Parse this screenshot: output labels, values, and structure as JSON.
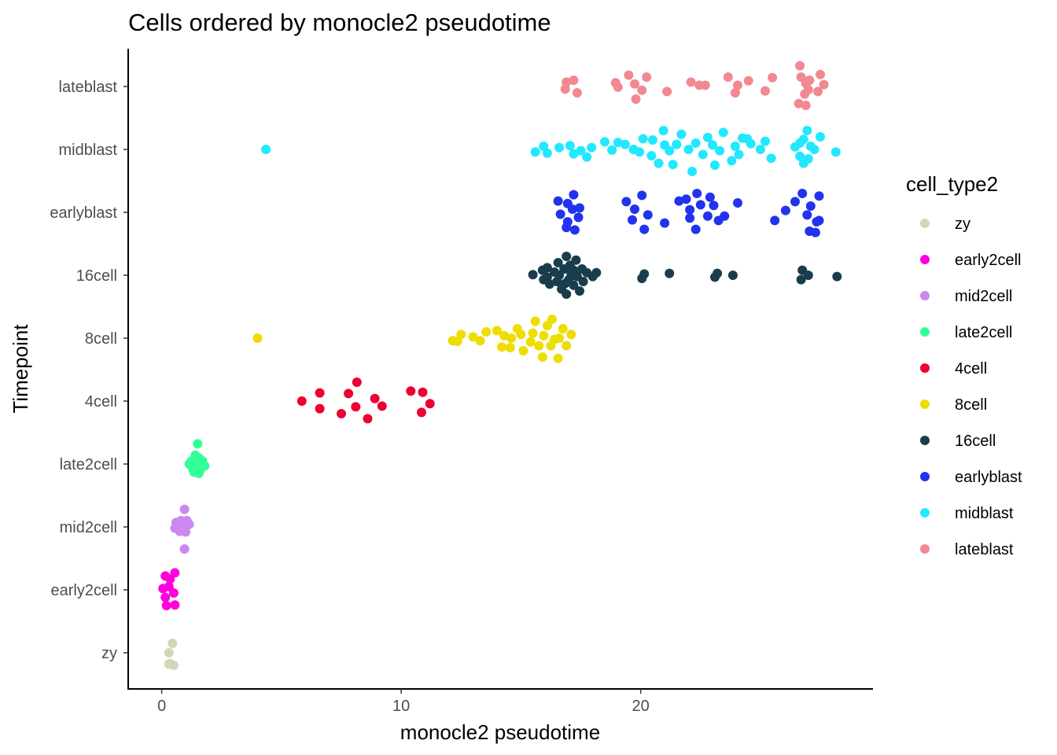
{
  "chart_data": {
    "type": "scatter",
    "title": "Cells ordered by monocle2 pseudotime",
    "xlabel": "monocle2 pseudotime",
    "ylabel": "Timepoint",
    "xlim": [
      -1.4,
      29.7
    ],
    "x_ticks": [
      0,
      10,
      20
    ],
    "categories": [
      "zy",
      "early2cell",
      "mid2cell",
      "late2cell",
      "4cell",
      "8cell",
      "16cell",
      "earlyblast",
      "midblast",
      "lateblast"
    ],
    "grid": false,
    "legend": {
      "title": "cell_type2",
      "position": "right"
    },
    "series": [
      {
        "name": "zy",
        "color": "#cfd8b8",
        "points": [
          [
            0.45,
            0.15
          ],
          [
            0.3,
            0.0
          ],
          [
            0.3,
            -0.18
          ],
          [
            0.5,
            -0.2
          ],
          [
            0.35,
            -0.17
          ]
        ]
      },
      {
        "name": "early2cell",
        "color": "#ff00dd",
        "points": [
          [
            0.55,
            0.27
          ],
          [
            0.15,
            0.22
          ],
          [
            0.35,
            0.17
          ],
          [
            0.05,
            0.02
          ],
          [
            0.3,
            0.05
          ],
          [
            0.5,
            -0.05
          ],
          [
            0.15,
            -0.12
          ],
          [
            0.2,
            -0.25
          ],
          [
            0.55,
            -0.24
          ]
        ]
      },
      {
        "name": "mid2cell",
        "color": "#cc88ee",
        "points": [
          [
            0.95,
            0.28
          ],
          [
            0.6,
            0.07
          ],
          [
            0.8,
            0.1
          ],
          [
            1.05,
            0.1
          ],
          [
            0.9,
            0.02
          ],
          [
            1.15,
            0.04
          ],
          [
            0.55,
            -0.02
          ],
          [
            0.75,
            -0.07
          ],
          [
            1.0,
            -0.08
          ],
          [
            0.95,
            -0.35
          ]
        ]
      },
      {
        "name": "late2cell",
        "color": "#33ff99",
        "points": [
          [
            1.5,
            0.32
          ],
          [
            1.4,
            0.14
          ],
          [
            1.55,
            0.1
          ],
          [
            1.25,
            0.05
          ],
          [
            1.7,
            0.05
          ],
          [
            1.15,
            0.0
          ],
          [
            1.45,
            -0.02
          ],
          [
            1.8,
            -0.03
          ],
          [
            1.3,
            -0.08
          ],
          [
            1.6,
            -0.1
          ],
          [
            1.35,
            -0.13
          ],
          [
            1.55,
            -0.15
          ]
        ]
      },
      {
        "name": "4cell",
        "color": "#ee0033",
        "points": [
          [
            5.85,
            0.0
          ],
          [
            6.6,
            0.13
          ],
          [
            6.6,
            -0.12
          ],
          [
            7.5,
            -0.2
          ],
          [
            7.8,
            0.12
          ],
          [
            8.15,
            0.3
          ],
          [
            8.1,
            -0.09
          ],
          [
            8.6,
            -0.28
          ],
          [
            8.9,
            0.04
          ],
          [
            9.2,
            -0.08
          ],
          [
            10.4,
            0.16
          ],
          [
            10.9,
            0.14
          ],
          [
            10.85,
            -0.18
          ],
          [
            11.2,
            -0.04
          ]
        ]
      },
      {
        "name": "8cell",
        "color": "#eedd00",
        "points": [
          [
            4.0,
            0.0
          ],
          [
            12.15,
            -0.04
          ],
          [
            12.5,
            0.06
          ],
          [
            12.35,
            -0.05
          ],
          [
            13.0,
            0.02
          ],
          [
            13.3,
            -0.04
          ],
          [
            13.55,
            0.1
          ],
          [
            14.0,
            0.12
          ],
          [
            14.2,
            -0.14
          ],
          [
            14.3,
            0.04
          ],
          [
            14.55,
            -0.15
          ],
          [
            14.6,
            0.0
          ],
          [
            14.85,
            0.15
          ],
          [
            15.0,
            0.06
          ],
          [
            15.1,
            -0.2
          ],
          [
            15.4,
            -0.06
          ],
          [
            15.5,
            0.08
          ],
          [
            15.6,
            0.27
          ],
          [
            15.75,
            -0.12
          ],
          [
            15.9,
            -0.3
          ],
          [
            15.95,
            0.04
          ],
          [
            16.1,
            0.2
          ],
          [
            16.25,
            -0.12
          ],
          [
            16.3,
            0.3
          ],
          [
            16.4,
            -0.02
          ],
          [
            16.55,
            -0.32
          ],
          [
            16.6,
            0.0
          ],
          [
            16.75,
            0.15
          ],
          [
            16.9,
            -0.12
          ],
          [
            17.1,
            0.06
          ]
        ]
      },
      {
        "name": "16cell",
        "color": "#1a3d4d",
        "points": [
          [
            15.5,
            0.01
          ],
          [
            15.9,
            0.08
          ],
          [
            15.95,
            -0.07
          ],
          [
            16.1,
            0.12
          ],
          [
            16.1,
            -0.03
          ],
          [
            16.2,
            -0.14
          ],
          [
            16.4,
            0.05
          ],
          [
            16.5,
            -0.1
          ],
          [
            16.55,
            0.2
          ],
          [
            16.6,
            0.0
          ],
          [
            16.7,
            -0.22
          ],
          [
            16.8,
            0.1
          ],
          [
            16.9,
            0.3
          ],
          [
            16.9,
            -0.3
          ],
          [
            17.0,
            -0.07
          ],
          [
            17.05,
            0.16
          ],
          [
            17.1,
            0.02
          ],
          [
            17.2,
            -0.16
          ],
          [
            17.3,
            0.24
          ],
          [
            17.35,
            -0.02
          ],
          [
            17.45,
            -0.25
          ],
          [
            17.55,
            0.1
          ],
          [
            17.6,
            -0.1
          ],
          [
            17.75,
            0.04
          ],
          [
            17.2,
            0.08
          ],
          [
            16.85,
            -0.13
          ],
          [
            18.0,
            -0.02
          ],
          [
            18.15,
            0.04
          ],
          [
            20.05,
            -0.05
          ],
          [
            20.15,
            0.02
          ],
          [
            21.2,
            0.03
          ],
          [
            23.1,
            -0.03
          ],
          [
            23.2,
            0.03
          ],
          [
            23.85,
            0.0
          ],
          [
            26.75,
            0.08
          ],
          [
            26.7,
            -0.07
          ],
          [
            27.0,
            0.0
          ],
          [
            28.2,
            -0.02
          ]
        ]
      },
      {
        "name": "earlyblast",
        "color": "#2233ee",
        "points": [
          [
            16.55,
            0.18
          ],
          [
            16.95,
            0.14
          ],
          [
            17.2,
            0.28
          ],
          [
            17.15,
            0.05
          ],
          [
            16.65,
            -0.03
          ],
          [
            17.4,
            -0.08
          ],
          [
            16.95,
            -0.15
          ],
          [
            17.25,
            -0.28
          ],
          [
            17.45,
            0.07
          ],
          [
            16.9,
            -0.24
          ],
          [
            19.4,
            0.17
          ],
          [
            19.75,
            0.05
          ],
          [
            20.05,
            0.27
          ],
          [
            19.65,
            -0.12
          ],
          [
            20.3,
            -0.04
          ],
          [
            20.15,
            -0.27
          ],
          [
            21.0,
            -0.17
          ],
          [
            21.6,
            0.18
          ],
          [
            22.05,
            0.04
          ],
          [
            22.35,
            0.3
          ],
          [
            22.05,
            -0.09
          ],
          [
            21.9,
            0.21
          ],
          [
            22.5,
            0.12
          ],
          [
            22.3,
            -0.27
          ],
          [
            22.9,
            0.24
          ],
          [
            22.8,
            -0.06
          ],
          [
            23.05,
            0.11
          ],
          [
            23.5,
            -0.06
          ],
          [
            23.25,
            -0.13
          ],
          [
            24.05,
            0.15
          ],
          [
            25.6,
            -0.13
          ],
          [
            26.05,
            0.03
          ],
          [
            26.45,
            0.17
          ],
          [
            26.75,
            0.3
          ],
          [
            26.95,
            -0.04
          ],
          [
            27.1,
            0.1
          ],
          [
            27.45,
            0.26
          ],
          [
            27.35,
            -0.15
          ],
          [
            27.05,
            -0.3
          ],
          [
            27.3,
            -0.32
          ],
          [
            27.45,
            -0.13
          ]
        ]
      },
      {
        "name": "midblast",
        "color": "#22e8ff",
        "points": [
          [
            4.35,
            0.0
          ],
          [
            15.6,
            -0.04
          ],
          [
            15.95,
            0.05
          ],
          [
            16.1,
            -0.06
          ],
          [
            16.6,
            0.03
          ],
          [
            17.05,
            0.06
          ],
          [
            17.2,
            -0.07
          ],
          [
            17.5,
            -0.02
          ],
          [
            17.75,
            -0.12
          ],
          [
            17.95,
            0.03
          ],
          [
            18.5,
            0.12
          ],
          [
            18.8,
            -0.01
          ],
          [
            19.05,
            0.11
          ],
          [
            19.35,
            0.08
          ],
          [
            19.7,
            0.0
          ],
          [
            19.95,
            -0.04
          ],
          [
            20.1,
            0.17
          ],
          [
            20.45,
            -0.1
          ],
          [
            20.5,
            0.15
          ],
          [
            20.75,
            -0.22
          ],
          [
            20.95,
            0.3
          ],
          [
            21.0,
            0.07
          ],
          [
            21.2,
            -0.02
          ],
          [
            21.35,
            -0.24
          ],
          [
            21.5,
            0.08
          ],
          [
            21.7,
            0.24
          ],
          [
            22.0,
            0.0
          ],
          [
            22.15,
            -0.35
          ],
          [
            22.3,
            0.1
          ],
          [
            22.6,
            -0.08
          ],
          [
            22.8,
            0.19
          ],
          [
            23.0,
            0.07
          ],
          [
            23.1,
            -0.25
          ],
          [
            23.3,
            -0.02
          ],
          [
            23.45,
            0.27
          ],
          [
            23.8,
            -0.18
          ],
          [
            23.95,
            0.05
          ],
          [
            24.1,
            -0.08
          ],
          [
            24.25,
            0.18
          ],
          [
            24.45,
            0.17
          ],
          [
            24.6,
            0.09
          ],
          [
            25.0,
            0.0
          ],
          [
            25.2,
            0.13
          ],
          [
            25.45,
            -0.14
          ],
          [
            26.45,
            0.04
          ],
          [
            26.65,
            -0.11
          ],
          [
            26.8,
            0.16
          ],
          [
            26.95,
            0.3
          ],
          [
            27.1,
            0.05
          ],
          [
            27.25,
            0.0
          ],
          [
            27.5,
            0.2
          ],
          [
            28.15,
            -0.04
          ],
          [
            26.65,
            0.1
          ],
          [
            26.8,
            -0.22
          ],
          [
            27.0,
            -0.15
          ]
        ]
      },
      {
        "name": "lateblast",
        "color": "#f28890",
        "points": [
          [
            16.9,
            0.07
          ],
          [
            16.85,
            -0.04
          ],
          [
            17.2,
            0.1
          ],
          [
            17.35,
            -0.1
          ],
          [
            18.95,
            0.06
          ],
          [
            19.05,
            -0.01
          ],
          [
            19.5,
            0.18
          ],
          [
            19.75,
            0.04
          ],
          [
            19.8,
            -0.2
          ],
          [
            20.25,
            0.15
          ],
          [
            20.05,
            -0.06
          ],
          [
            21.1,
            -0.08
          ],
          [
            22.1,
            0.07
          ],
          [
            22.45,
            0.02
          ],
          [
            22.7,
            0.02
          ],
          [
            23.65,
            0.15
          ],
          [
            24.05,
            0.02
          ],
          [
            23.95,
            -0.1
          ],
          [
            24.5,
            0.09
          ],
          [
            25.2,
            -0.07
          ],
          [
            25.5,
            0.14
          ],
          [
            26.65,
            0.33
          ],
          [
            26.7,
            0.15
          ],
          [
            26.9,
            0.05
          ],
          [
            27.05,
            0.1
          ],
          [
            26.85,
            -0.12
          ],
          [
            26.6,
            -0.27
          ],
          [
            26.9,
            -0.3
          ],
          [
            27.0,
            -0.05
          ],
          [
            27.5,
            0.19
          ],
          [
            27.65,
            0.03
          ],
          [
            27.4,
            -0.08
          ]
        ]
      }
    ]
  }
}
